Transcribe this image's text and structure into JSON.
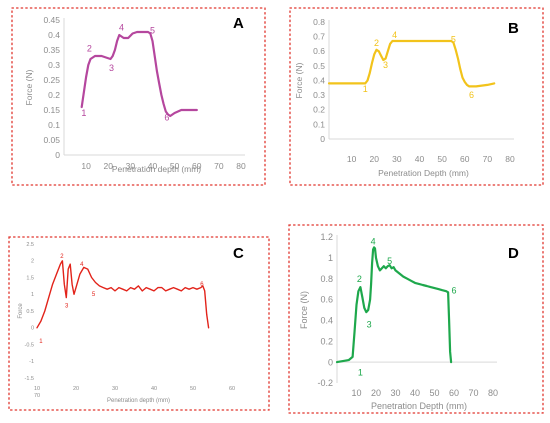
{
  "chart_data": [
    {
      "type": "line",
      "panel": "A",
      "color": "#b5479e",
      "xlabel": "Penetration depth (mm)",
      "ylabel": "Force (N)",
      "xlim": [
        0,
        80
      ],
      "ylim": [
        0,
        0.45
      ],
      "xticks": [
        "10",
        "20",
        "30",
        "40",
        "50",
        "60",
        "70",
        "80"
      ],
      "yticks": [
        "0",
        "0.05",
        "0.1",
        "0.15",
        "0.2",
        "0.25",
        "0.3",
        "0.35",
        "0.4",
        "0.45"
      ],
      "grid": false,
      "series": [
        {
          "x": [
            8,
            9,
            10,
            11,
            12,
            14,
            17,
            19,
            21,
            22,
            23,
            24,
            25,
            26,
            27,
            29,
            31,
            33,
            36,
            38,
            39,
            40,
            41,
            42,
            43,
            44,
            45,
            46,
            47,
            48,
            50,
            53,
            57,
            60
          ],
          "y": [
            0.16,
            0.21,
            0.26,
            0.3,
            0.32,
            0.33,
            0.33,
            0.325,
            0.32,
            0.33,
            0.35,
            0.38,
            0.4,
            0.395,
            0.39,
            0.39,
            0.405,
            0.41,
            0.41,
            0.41,
            0.405,
            0.38,
            0.33,
            0.28,
            0.24,
            0.2,
            0.17,
            0.145,
            0.135,
            0.13,
            0.14,
            0.15,
            0.15,
            0.15
          ]
        }
      ],
      "annotations": [
        {
          "label": "1",
          "x": 9,
          "y": 0.13
        },
        {
          "label": "2",
          "x": 11.5,
          "y": 0.345
        },
        {
          "label": "3",
          "x": 21.5,
          "y": 0.28
        },
        {
          "label": "4",
          "x": 26,
          "y": 0.415
        },
        {
          "label": "5",
          "x": 40,
          "y": 0.405
        },
        {
          "label": "6",
          "x": 46.5,
          "y": 0.115
        }
      ]
    },
    {
      "type": "line",
      "panel": "B",
      "color": "#f2c31b",
      "xlabel": "Penetration Depth (mm)",
      "ylabel": "Force (N)",
      "xlim": [
        0,
        80
      ],
      "ylim": [
        0,
        0.8
      ],
      "xticks": [
        "10",
        "20",
        "30",
        "40",
        "50",
        "60",
        "70",
        "80"
      ],
      "yticks": [
        "0",
        "0.1",
        "0.2",
        "0.3",
        "0.4",
        "0.5",
        "0.6",
        "0.7",
        "0.8"
      ],
      "grid": false,
      "series": [
        {
          "x": [
            0,
            10,
            16,
            17,
            18,
            19,
            20,
            21,
            22,
            23,
            24,
            25,
            26,
            27,
            28,
            30,
            35,
            40,
            45,
            50,
            54,
            55,
            56,
            57,
            58,
            59,
            60,
            61,
            62,
            65,
            70,
            73
          ],
          "y": [
            0.38,
            0.38,
            0.38,
            0.4,
            0.45,
            0.52,
            0.58,
            0.61,
            0.6,
            0.57,
            0.54,
            0.55,
            0.6,
            0.65,
            0.67,
            0.67,
            0.67,
            0.67,
            0.67,
            0.67,
            0.67,
            0.66,
            0.61,
            0.55,
            0.48,
            0.42,
            0.39,
            0.37,
            0.36,
            0.36,
            0.37,
            0.38
          ]
        }
      ],
      "annotations": [
        {
          "label": "1",
          "x": 16,
          "y": 0.32
        },
        {
          "label": "2",
          "x": 21,
          "y": 0.635
        },
        {
          "label": "3",
          "x": 25,
          "y": 0.485
        },
        {
          "label": "4",
          "x": 29,
          "y": 0.69
        },
        {
          "label": "5",
          "x": 55,
          "y": 0.66
        },
        {
          "label": "6",
          "x": 63,
          "y": 0.28
        }
      ]
    },
    {
      "type": "line",
      "panel": "C",
      "color": "#e2231a",
      "xlabel": "Penetration depth (mm)",
      "ylabel": "Force",
      "xlim": [
        10,
        60
      ],
      "ylim": [
        -1.5,
        2.5
      ],
      "xticks": [
        "10",
        "20",
        "30",
        "40",
        "50",
        "60"
      ],
      "xticks_extra": [
        "70"
      ],
      "yticks": [
        "-1.5",
        "-1",
        "-0.5",
        "0",
        "0.5",
        "1",
        "1.5",
        "2",
        "2.5"
      ],
      "grid": false,
      "series": [
        {
          "x": [
            10,
            11,
            12,
            13,
            14,
            15,
            16,
            16.5,
            17,
            17.5,
            18,
            18.5,
            19,
            19.5,
            20,
            21,
            22,
            23,
            24,
            25,
            26,
            27,
            28,
            29,
            30,
            31,
            32,
            33,
            34,
            35,
            36,
            37,
            38,
            39,
            40,
            41,
            42,
            43,
            44,
            45,
            46,
            47,
            48,
            49,
            50,
            51,
            52,
            52.5,
            53,
            53.5,
            54
          ],
          "y": [
            0,
            0.2,
            0.5,
            0.9,
            1.3,
            1.6,
            1.9,
            2.0,
            1.3,
            0.9,
            1.75,
            1.9,
            1.3,
            1.0,
            1.2,
            1.6,
            1.8,
            1.75,
            1.5,
            1.35,
            1.25,
            1.2,
            1.15,
            1.2,
            1.1,
            1.2,
            1.15,
            1.1,
            1.2,
            1.15,
            1.25,
            1.1,
            1.2,
            1.15,
            1.1,
            1.2,
            1.2,
            1.1,
            1.15,
            1.2,
            1.15,
            1.1,
            1.2,
            1.15,
            1.2,
            1.15,
            1.2,
            1.25,
            1.1,
            0.4,
            0.0
          ]
        }
      ],
      "annotations": [
        {
          "label": "1",
          "x": 11,
          "y": -0.45
        },
        {
          "label": "2",
          "x": 16.4,
          "y": 2.08
        },
        {
          "label": "3",
          "x": 17.6,
          "y": 0.6
        },
        {
          "label": "4",
          "x": 21.5,
          "y": 1.85
        },
        {
          "label": "5",
          "x": 24.5,
          "y": 0.95
        },
        {
          "label": "6",
          "x": 52.3,
          "y": 1.25
        }
      ]
    },
    {
      "type": "line",
      "panel": "D",
      "color": "#1ea84c",
      "xlabel": "Penetration Depth (mm)",
      "ylabel": "Force (N)",
      "xlim": [
        0,
        80
      ],
      "ylim": [
        -0.2,
        1.2
      ],
      "xticks": [
        "10",
        "20",
        "30",
        "40",
        "50",
        "60",
        "70",
        "80"
      ],
      "yticks": [
        "-0.2",
        "0",
        "0.2",
        "0.4",
        "0.6",
        "0.8",
        "1",
        "1.2"
      ],
      "grid": false,
      "series": [
        {
          "x": [
            0,
            3,
            6,
            8,
            9,
            10,
            11,
            12,
            13,
            14,
            15,
            16,
            17,
            17.5,
            18,
            18.5,
            19,
            19.5,
            20,
            21,
            22,
            23,
            24,
            25,
            26,
            27,
            28,
            29,
            30,
            32,
            34,
            36,
            38,
            40,
            42,
            44,
            46,
            48,
            50,
            52,
            54,
            56,
            57,
            57.5,
            58,
            58.5
          ],
          "y": [
            0.0,
            0.01,
            0.02,
            0.05,
            0.3,
            0.55,
            0.68,
            0.72,
            0.62,
            0.52,
            0.48,
            0.5,
            0.6,
            0.75,
            0.95,
            1.08,
            1.1,
            1.09,
            1.0,
            0.92,
            0.88,
            0.9,
            0.92,
            0.9,
            0.92,
            0.93,
            0.9,
            0.91,
            0.88,
            0.85,
            0.82,
            0.8,
            0.78,
            0.76,
            0.75,
            0.74,
            0.73,
            0.72,
            0.71,
            0.7,
            0.69,
            0.68,
            0.67,
            0.4,
            0.1,
            0.0
          ]
        }
      ],
      "annotations": [
        {
          "label": "1",
          "x": 12,
          "y": -0.13
        },
        {
          "label": "2",
          "x": 11.5,
          "y": 0.77
        },
        {
          "label": "3",
          "x": 16.5,
          "y": 0.33
        },
        {
          "label": "4",
          "x": 18.5,
          "y": 1.13
        },
        {
          "label": "5",
          "x": 27,
          "y": 0.94
        },
        {
          "label": "6",
          "x": 60,
          "y": 0.66
        }
      ]
    }
  ]
}
